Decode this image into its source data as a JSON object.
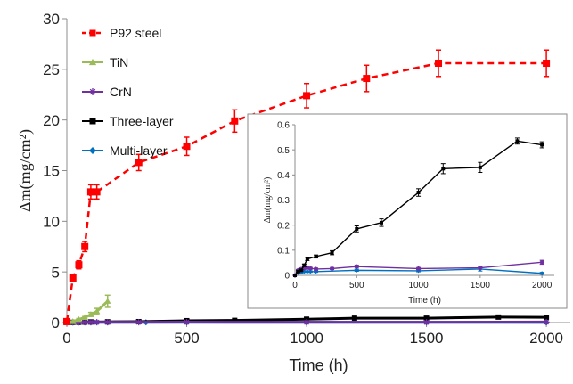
{
  "chart_data": [
    {
      "type": "line",
      "xlabel": "Time (h)",
      "ylabel": "Δm(mg/cm²)",
      "xlim": [
        0,
        2100
      ],
      "ylim": [
        0,
        30
      ],
      "xticks": [
        0,
        500,
        1000,
        1500,
        2000
      ],
      "yticks": [
        0,
        5,
        10,
        15,
        20,
        25,
        30
      ],
      "grid": false,
      "legend_position": "top-left",
      "series": [
        {
          "name": "P92 steel",
          "color": "#ff0000",
          "line_style": "dashed",
          "marker": "square",
          "x": [
            0,
            25,
            50,
            75,
            100,
            125,
            300,
            500,
            700,
            1000,
            1250,
            1550,
            2000
          ],
          "y": [
            0.1,
            4.4,
            5.7,
            7.5,
            12.9,
            12.9,
            15.8,
            17.4,
            19.9,
            22.4,
            24.1,
            25.6,
            25.6
          ],
          "err": [
            0.2,
            0.3,
            0.4,
            0.5,
            0.7,
            0.7,
            0.8,
            0.9,
            1.1,
            1.2,
            1.3,
            1.3,
            1.3
          ]
        },
        {
          "name": "TiN",
          "color": "#9bbb59",
          "line_style": "solid",
          "marker": "triangle",
          "x": [
            0,
            25,
            50,
            75,
            100,
            125,
            170
          ],
          "y": [
            0,
            0.1,
            0.3,
            0.5,
            0.8,
            1.1,
            2.1
          ],
          "err": [
            0,
            0.05,
            0.1,
            0.1,
            0.2,
            0.3,
            0.6
          ]
        },
        {
          "name": "CrN",
          "color": "#7030a0",
          "line_style": "solid",
          "marker": "star",
          "x": [
            0,
            25,
            50,
            75,
            100,
            125,
            170,
            300,
            500,
            1000,
            1500,
            2000
          ],
          "y": [
            0,
            0.02,
            0.03,
            0.03,
            0.03,
            0.03,
            0.03,
            0.03,
            0.04,
            0.03,
            0.03,
            0.05
          ]
        },
        {
          "name": "Three-layer",
          "color": "#000000",
          "line_style": "solid",
          "marker": "square",
          "x": [
            0,
            25,
            50,
            75,
            100,
            170,
            300,
            500,
            700,
            1000,
            1200,
            1500,
            1800,
            2000
          ],
          "y": [
            0,
            0.02,
            0.02,
            0.04,
            0.06,
            0.07,
            0.09,
            0.18,
            0.21,
            0.33,
            0.43,
            0.43,
            0.54,
            0.52
          ]
        },
        {
          "name": "Multi-layer",
          "color": "#0070c0",
          "line_style": "solid",
          "marker": "diamond",
          "x": [
            0,
            25,
            50,
            75,
            100,
            125,
            170,
            330,
            500,
            1000,
            1500,
            2000
          ],
          "y": [
            0,
            0.01,
            0.01,
            0.02,
            0.02,
            0.02,
            0.02,
            0.02,
            0.02,
            0.02,
            0.02,
            0.01
          ]
        }
      ]
    },
    {
      "type": "line",
      "xlabel": "Time (h)",
      "ylabel": "Δm(mg/cm²)",
      "xlim": [
        0,
        2100
      ],
      "ylim": [
        0,
        0.6
      ],
      "xticks": [
        0,
        500,
        1000,
        1500,
        2000
      ],
      "yticks": [
        0,
        0.1,
        0.2,
        0.3,
        0.4,
        0.5,
        0.6
      ],
      "grid": false,
      "series": [
        {
          "name": "Three-layer",
          "color": "#000000",
          "marker": "square",
          "x": [
            0,
            25,
            50,
            75,
            100,
            170,
            300,
            500,
            700,
            1000,
            1200,
            1500,
            1800,
            2000
          ],
          "y": [
            0,
            0.015,
            0.02,
            0.04,
            0.065,
            0.075,
            0.09,
            0.185,
            0.21,
            0.33,
            0.425,
            0.43,
            0.535,
            0.52
          ],
          "err": [
            0,
            0.003,
            0.003,
            0.005,
            0.006,
            0.006,
            0.008,
            0.012,
            0.015,
            0.015,
            0.02,
            0.02,
            0.012,
            0.012
          ]
        },
        {
          "name": "CrN",
          "color": "#7030a0",
          "marker": "star",
          "x": [
            0,
            25,
            50,
            75,
            100,
            125,
            170,
            300,
            500,
            1000,
            1500,
            2000
          ],
          "y": [
            0,
            0.02,
            0.025,
            0.028,
            0.03,
            0.028,
            0.025,
            0.027,
            0.035,
            0.027,
            0.03,
            0.052
          ],
          "err": [
            0,
            0.003,
            0.004,
            0.004,
            0.004,
            0.004,
            0.004,
            0.004,
            0.006,
            0.004,
            0.005,
            0.008
          ]
        },
        {
          "name": "Multi-layer",
          "color": "#0070c0",
          "marker": "diamond",
          "x": [
            0,
            25,
            50,
            75,
            100,
            125,
            170,
            500,
            1000,
            1500,
            2000
          ],
          "y": [
            0,
            0.01,
            0.012,
            0.015,
            0.015,
            0.015,
            0.015,
            0.02,
            0.018,
            0.025,
            0.008
          ],
          "err": [
            0,
            0.003,
            0.003,
            0.003,
            0.003,
            0.003,
            0.003,
            0.004,
            0.004,
            0.008,
            0.004
          ]
        }
      ]
    }
  ]
}
